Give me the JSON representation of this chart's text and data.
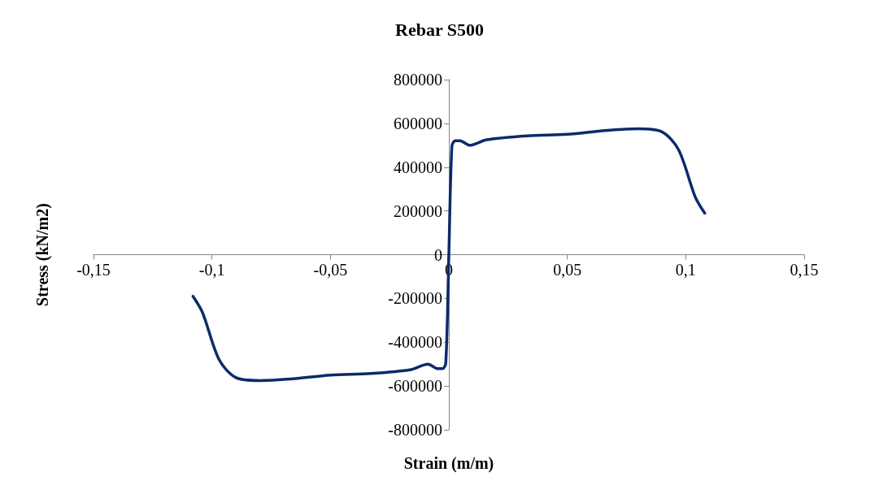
{
  "chart_data": {
    "type": "line",
    "title": "Rebar S500",
    "xlabel": "Strain (m/m)",
    "ylabel": "Stress (kN/m2)",
    "series": [
      {
        "color": "#0d2a6b",
        "x": [
          -0.108,
          -0.104,
          -0.097,
          -0.09,
          -0.08,
          -0.067,
          -0.05,
          -0.033,
          -0.016,
          -0.0088,
          -0.0047,
          -0.0027,
          -0.0013,
          0,
          0.0013,
          0.0027,
          0.0047,
          0.0088,
          0.016,
          0.033,
          0.05,
          0.067,
          0.08,
          0.09,
          0.097,
          0.104,
          0.108
        ],
        "values": [
          -190000,
          -264000,
          -479000,
          -561000,
          -575000,
          -568000,
          -550000,
          -543000,
          -525000,
          -500000,
          -521000,
          -521000,
          -497000,
          0,
          497000,
          521000,
          521000,
          500000,
          525000,
          543000,
          550000,
          568000,
          575000,
          561000,
          479000,
          264000,
          190000
        ]
      }
    ],
    "xlim": [
      -0.15,
      0.15
    ],
    "xticks": [
      {
        "value": -0.15,
        "label": "-0,15"
      },
      {
        "value": -0.1,
        "label": "-0,1"
      },
      {
        "value": -0.05,
        "label": "-0,05"
      },
      0,
      {
        "value": 0.05,
        "label": "0,05"
      },
      {
        "value": 0.1,
        "label": "0,1"
      },
      {
        "value": 0.15,
        "label": "0,15"
      }
    ],
    "ylim": [
      -800000,
      800000
    ],
    "yticks": [
      -800000,
      -600000,
      -400000,
      -200000,
      0,
      200000,
      400000,
      600000,
      800000
    ],
    "grid": false,
    "marker": "none",
    "line_style": "solid"
  }
}
